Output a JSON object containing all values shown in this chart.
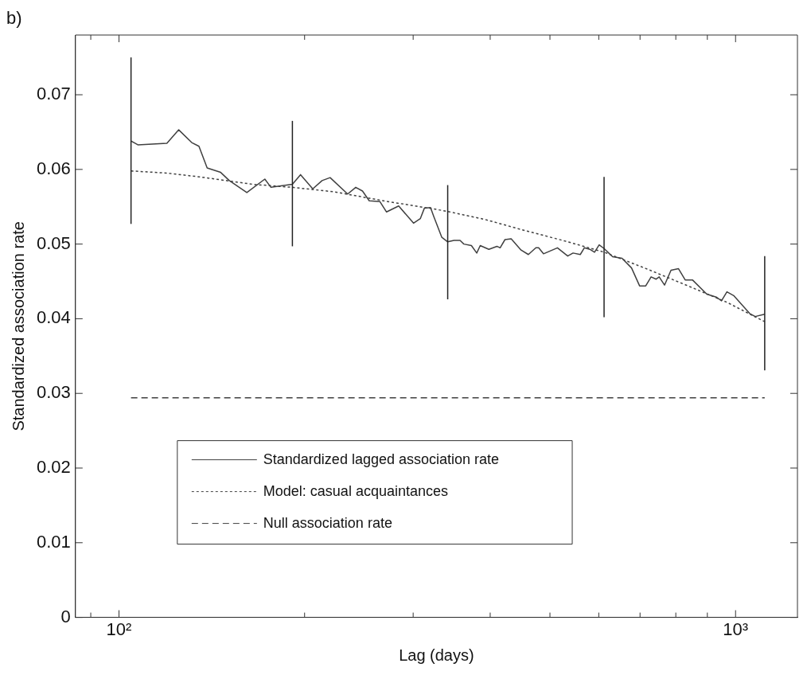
{
  "chart_data": {
    "type": "line",
    "xlabel": "Lag (days)",
    "ylabel": "Standardized association rate",
    "annotations": [
      "b)"
    ],
    "log": "x",
    "legend": "bottom left",
    "xlim": [
      85,
      1260
    ],
    "ylim": [
      0,
      0.078
    ],
    "xticks": [
      {
        "value": 90,
        "label": null
      },
      {
        "value": 100,
        "label": "10²"
      },
      {
        "value": 200,
        "label": null
      },
      {
        "value": 300,
        "label": null
      },
      {
        "value": 400,
        "label": null
      },
      {
        "value": 500,
        "label": null
      },
      {
        "value": 600,
        "label": null
      },
      {
        "value": 700,
        "label": null
      },
      {
        "value": 800,
        "label": null
      },
      {
        "value": 900,
        "label": null
      },
      {
        "value": 1000,
        "label": "10³"
      }
    ],
    "yticks": [
      0,
      0.01,
      0.02,
      0.03,
      0.04,
      0.05,
      0.06,
      0.07
    ],
    "series": [
      {
        "name": "Standardized lagged association rate",
        "color": "#404040",
        "line_style": "solid",
        "x": [
          104.6,
          107.3,
          119.6,
          125.0,
          131.2,
          134.8,
          139.0,
          146.2,
          151.0,
          161.2,
          172.4,
          176.4,
          191.1,
          197.0,
          206.2,
          213.5,
          220.0,
          234.9,
          242.1,
          248.3,
          254.6,
          264.9,
          271.6,
          284.2,
          300.4,
          308.1,
          312.8,
          320.1,
          324.0,
          333.9,
          341.3,
          349.4,
          357.4,
          362.5,
          372.9,
          380.4,
          385.4,
          398.0,
          410.2,
          415.1,
          422.7,
          432.6,
          448.9,
          461.3,
          474.4,
          479.3,
          488.1,
          514.2,
          534.3,
          545.0,
          560.0,
          568.5,
          580.2,
          590.6,
          600.9,
          612,
          631.8,
          654.5,
          678.1,
          698.8,
          715.0,
          729.5,
          743.4,
          751.8,
          767.0,
          785.8,
          808.1,
          828.5,
          851.3,
          898.0,
          930.2,
          948.8,
          968.3,
          992.9,
          1054,
          1076,
          1115
        ],
        "values": [
          0.0638,
          0.0633,
          0.0635,
          0.0653,
          0.0636,
          0.0631,
          0.0602,
          0.0596,
          0.0585,
          0.0569,
          0.0587,
          0.0576,
          0.058,
          0.0593,
          0.0574,
          0.0585,
          0.0589,
          0.0567,
          0.0576,
          0.0571,
          0.0558,
          0.0557,
          0.0543,
          0.0551,
          0.0528,
          0.0534,
          0.0548,
          0.0549,
          0.0537,
          0.0509,
          0.0503,
          0.0505,
          0.0505,
          0.05,
          0.0498,
          0.0488,
          0.0498,
          0.0493,
          0.0497,
          0.0495,
          0.0506,
          0.0507,
          0.0492,
          0.0486,
          0.0495,
          0.0495,
          0.0487,
          0.0495,
          0.0484,
          0.0488,
          0.0486,
          0.0495,
          0.0493,
          0.0489,
          0.0499,
          0.0494,
          0.0483,
          0.0481,
          0.0468,
          0.0444,
          0.0444,
          0.0456,
          0.0453,
          0.0456,
          0.0445,
          0.0465,
          0.0467,
          0.0452,
          0.0452,
          0.0433,
          0.0429,
          0.0424,
          0.0436,
          0.0431,
          0.0407,
          0.0403,
          0.0406
        ],
        "errors": [
          [
            0.0527,
            0.075
          ],
          null,
          null,
          null,
          null,
          null,
          null,
          null,
          null,
          null,
          null,
          null,
          [
            0.0497,
            0.0665
          ],
          null,
          null,
          null,
          null,
          null,
          null,
          null,
          null,
          null,
          null,
          null,
          null,
          null,
          null,
          null,
          null,
          null,
          [
            0.0426,
            0.0579
          ],
          null,
          null,
          null,
          null,
          null,
          null,
          null,
          null,
          null,
          null,
          null,
          null,
          null,
          null,
          null,
          null,
          null,
          null,
          null,
          null,
          null,
          null,
          null,
          null,
          [
            0.0402,
            0.059
          ],
          null,
          null,
          null,
          null,
          null,
          null,
          null,
          null,
          null,
          null,
          null,
          null,
          null,
          null,
          null,
          null,
          null,
          null,
          null,
          null,
          [
            0.0331,
            0.0484
          ]
        ]
      },
      {
        "name": "Model: casual acquaintances",
        "color": "#404040",
        "line_style": "dotted",
        "x": [
          104.6,
          119.8,
          135.1,
          165.1,
          191.1,
          223.3,
          272.7,
          324.0,
          340.0,
          392.1,
          455.9,
          529.4,
          612.8,
          716.6,
          831.7,
          968.3,
          1115
        ],
        "values": [
          0.0598,
          0.0595,
          0.059,
          0.058,
          0.0576,
          0.057,
          0.0557,
          0.0547,
          0.0544,
          0.0533,
          0.0518,
          0.0504,
          0.0489,
          0.0467,
          0.0445,
          0.0422,
          0.0396
        ]
      },
      {
        "name": "Null association rate",
        "color": "#404040",
        "line_style": "dashed",
        "x": [
          104.6,
          1115
        ],
        "values": [
          0.0294,
          0.0294
        ]
      }
    ]
  }
}
